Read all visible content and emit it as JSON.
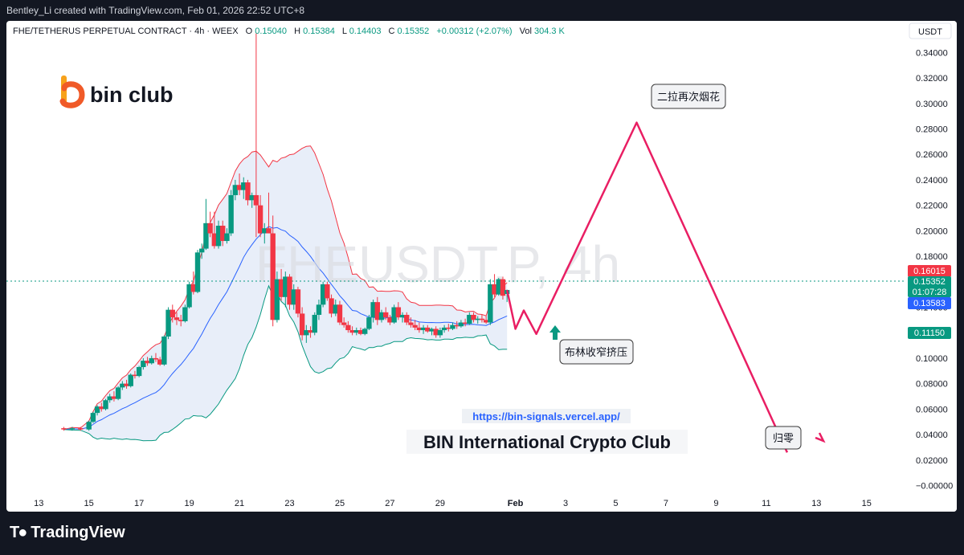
{
  "header": {
    "credit": "Bentley_Li created with TradingView.com, Feb 01, 2026 22:52 UTC+8"
  },
  "legend": {
    "symbol": "FHE/TETHERUS PERPETUAL CONTRACT · 4h · WEEX",
    "o_label": "O",
    "o_value": "0.15040",
    "h_label": "H",
    "h_value": "0.15384",
    "l_label": "L",
    "l_value": "0.14403",
    "c_label": "C",
    "c_value": "0.15352",
    "change": "+0.00312 (+2.07%)",
    "vol_label": "Vol",
    "vol_value": "304.3 K"
  },
  "watermark": "FHEUSDT.P, 4h",
  "brand": {
    "name": "bin club"
  },
  "footer": {
    "url": "https://bin-signals.vercel.app/",
    "club": "BIN International Crypto Club",
    "tradingview": "TradingView"
  },
  "callouts": {
    "second_pump": "二拉再次烟花",
    "bollinger_squeeze": "布林收窄挤压",
    "to_zero": "归零"
  },
  "price_badges": {
    "upper_band": "0.16015",
    "last_price": "0.15352",
    "countdown": "01:07:28",
    "mid_band": "0.13583",
    "lower_band": "0.11150"
  },
  "colors": {
    "up": "#089981",
    "down": "#f23645",
    "upper_band": "#f23645",
    "mid_band": "#2962ff",
    "lower_band": "#089981",
    "band_fill": "#e8eef9",
    "projection": "#e91e63"
  },
  "chart_data": {
    "type": "candlestick",
    "currency": "USDT",
    "y_ticks": [
      "0.34000",
      "0.32000",
      "0.30000",
      "0.28000",
      "0.26000",
      "0.24000",
      "0.22000",
      "0.20000",
      "0.18000",
      "0.16000",
      "0.14000",
      "0.12000",
      "0.10000",
      "0.08000",
      "0.06000",
      "0.04000",
      "0.02000",
      "−0.00000"
    ],
    "y_range": [
      -0.006,
      0.356
    ],
    "x_ticks": [
      "13",
      "15",
      "17",
      "19",
      "21",
      "23",
      "25",
      "27",
      "29",
      "Feb",
      "3",
      "5",
      "7",
      "9",
      "11",
      "13",
      "15"
    ],
    "time_range": [
      "Jan 12, 2026",
      "Feb 16, 2026"
    ],
    "candles": [
      {
        "t": "2026-01-14 00:00",
        "o": 0.045,
        "h": 0.046,
        "l": 0.043,
        "c": 0.044
      },
      {
        "t": "2026-01-14 08:00",
        "o": 0.044,
        "h": 0.046,
        "l": 0.043,
        "c": 0.045
      },
      {
        "t": "2026-01-14 16:00",
        "o": 0.045,
        "h": 0.046,
        "l": 0.043,
        "c": 0.044
      },
      {
        "t": "2026-01-15 00:00",
        "o": 0.044,
        "h": 0.051,
        "l": 0.043,
        "c": 0.05
      },
      {
        "t": "2026-01-15 04:00",
        "o": 0.05,
        "h": 0.058,
        "l": 0.049,
        "c": 0.057
      },
      {
        "t": "2026-01-15 08:00",
        "o": 0.057,
        "h": 0.063,
        "l": 0.055,
        "c": 0.062
      },
      {
        "t": "2026-01-15 12:00",
        "o": 0.062,
        "h": 0.065,
        "l": 0.058,
        "c": 0.06
      },
      {
        "t": "2026-01-15 16:00",
        "o": 0.06,
        "h": 0.068,
        "l": 0.059,
        "c": 0.067
      },
      {
        "t": "2026-01-15 20:00",
        "o": 0.067,
        "h": 0.072,
        "l": 0.065,
        "c": 0.07
      },
      {
        "t": "2026-01-16 00:00",
        "o": 0.07,
        "h": 0.074,
        "l": 0.066,
        "c": 0.068
      },
      {
        "t": "2026-01-16 04:00",
        "o": 0.068,
        "h": 0.078,
        "l": 0.067,
        "c": 0.077
      },
      {
        "t": "2026-01-16 08:00",
        "o": 0.077,
        "h": 0.082,
        "l": 0.075,
        "c": 0.08
      },
      {
        "t": "2026-01-16 12:00",
        "o": 0.08,
        "h": 0.083,
        "l": 0.076,
        "c": 0.078
      },
      {
        "t": "2026-01-16 16:00",
        "o": 0.078,
        "h": 0.088,
        "l": 0.077,
        "c": 0.087
      },
      {
        "t": "2026-01-16 20:00",
        "o": 0.087,
        "h": 0.09,
        "l": 0.084,
        "c": 0.086
      },
      {
        "t": "2026-01-17 00:00",
        "o": 0.086,
        "h": 0.094,
        "l": 0.085,
        "c": 0.093
      },
      {
        "t": "2026-01-17 04:00",
        "o": 0.093,
        "h": 0.1,
        "l": 0.091,
        "c": 0.098
      },
      {
        "t": "2026-01-17 08:00",
        "o": 0.098,
        "h": 0.101,
        "l": 0.094,
        "c": 0.096
      },
      {
        "t": "2026-01-17 12:00",
        "o": 0.096,
        "h": 0.102,
        "l": 0.095,
        "c": 0.1
      },
      {
        "t": "2026-01-17 16:00",
        "o": 0.1,
        "h": 0.104,
        "l": 0.097,
        "c": 0.099
      },
      {
        "t": "2026-01-17 20:00",
        "o": 0.099,
        "h": 0.101,
        "l": 0.094,
        "c": 0.095
      },
      {
        "t": "2026-01-18 00:00",
        "o": 0.095,
        "h": 0.118,
        "l": 0.094,
        "c": 0.117
      },
      {
        "t": "2026-01-18 04:00",
        "o": 0.117,
        "h": 0.14,
        "l": 0.115,
        "c": 0.138
      },
      {
        "t": "2026-01-18 08:00",
        "o": 0.138,
        "h": 0.142,
        "l": 0.128,
        "c": 0.132
      },
      {
        "t": "2026-01-18 12:00",
        "o": 0.132,
        "h": 0.136,
        "l": 0.126,
        "c": 0.13
      },
      {
        "t": "2026-01-18 16:00",
        "o": 0.13,
        "h": 0.134,
        "l": 0.125,
        "c": 0.129
      },
      {
        "t": "2026-01-18 20:00",
        "o": 0.129,
        "h": 0.142,
        "l": 0.128,
        "c": 0.14
      },
      {
        "t": "2026-01-19 00:00",
        "o": 0.14,
        "h": 0.16,
        "l": 0.139,
        "c": 0.158
      },
      {
        "t": "2026-01-19 04:00",
        "o": 0.158,
        "h": 0.168,
        "l": 0.15,
        "c": 0.152
      },
      {
        "t": "2026-01-19 08:00",
        "o": 0.152,
        "h": 0.185,
        "l": 0.151,
        "c": 0.183
      },
      {
        "t": "2026-01-19 12:00",
        "o": 0.183,
        "h": 0.19,
        "l": 0.178,
        "c": 0.186
      },
      {
        "t": "2026-01-19 16:00",
        "o": 0.186,
        "h": 0.225,
        "l": 0.185,
        "c": 0.206
      },
      {
        "t": "2026-01-19 20:00",
        "o": 0.206,
        "h": 0.215,
        "l": 0.195,
        "c": 0.198
      },
      {
        "t": "2026-01-20 00:00",
        "o": 0.198,
        "h": 0.215,
        "l": 0.186,
        "c": 0.188
      },
      {
        "t": "2026-01-20 04:00",
        "o": 0.188,
        "h": 0.208,
        "l": 0.186,
        "c": 0.204
      },
      {
        "t": "2026-01-20 08:00",
        "o": 0.204,
        "h": 0.208,
        "l": 0.188,
        "c": 0.192
      },
      {
        "t": "2026-01-20 12:00",
        "o": 0.192,
        "h": 0.202,
        "l": 0.19,
        "c": 0.198
      },
      {
        "t": "2026-01-20 16:00",
        "o": 0.198,
        "h": 0.232,
        "l": 0.196,
        "c": 0.228
      },
      {
        "t": "2026-01-20 20:00",
        "o": 0.228,
        "h": 0.24,
        "l": 0.224,
        "c": 0.236
      },
      {
        "t": "2026-01-21 00:00",
        "o": 0.236,
        "h": 0.245,
        "l": 0.228,
        "c": 0.232
      },
      {
        "t": "2026-01-21 04:00",
        "o": 0.232,
        "h": 0.242,
        "l": 0.225,
        "c": 0.238
      },
      {
        "t": "2026-01-21 08:00",
        "o": 0.238,
        "h": 0.24,
        "l": 0.22,
        "c": 0.224
      },
      {
        "t": "2026-01-21 12:00",
        "o": 0.224,
        "h": 0.23,
        "l": 0.218,
        "c": 0.228
      },
      {
        "t": "2026-01-21 16:00",
        "o": 0.228,
        "h": 0.355,
        "l": 0.195,
        "c": 0.22
      },
      {
        "t": "2026-01-21 20:00",
        "o": 0.22,
        "h": 0.228,
        "l": 0.195,
        "c": 0.198
      },
      {
        "t": "2026-01-22 00:00",
        "o": 0.198,
        "h": 0.206,
        "l": 0.19,
        "c": 0.202
      },
      {
        "t": "2026-01-22 04:00",
        "o": 0.202,
        "h": 0.23,
        "l": 0.198,
        "c": 0.198
      },
      {
        "t": "2026-01-22 08:00",
        "o": 0.198,
        "h": 0.212,
        "l": 0.125,
        "c": 0.13
      },
      {
        "t": "2026-01-22 12:00",
        "o": 0.13,
        "h": 0.168,
        "l": 0.128,
        "c": 0.162
      },
      {
        "t": "2026-01-22 16:00",
        "o": 0.162,
        "h": 0.17,
        "l": 0.145,
        "c": 0.148
      },
      {
        "t": "2026-01-22 20:00",
        "o": 0.148,
        "h": 0.168,
        "l": 0.14,
        "c": 0.164
      },
      {
        "t": "2026-01-23 00:00",
        "o": 0.164,
        "h": 0.166,
        "l": 0.138,
        "c": 0.142
      },
      {
        "t": "2026-01-23 04:00",
        "o": 0.142,
        "h": 0.158,
        "l": 0.138,
        "c": 0.154
      },
      {
        "t": "2026-01-23 08:00",
        "o": 0.154,
        "h": 0.156,
        "l": 0.132,
        "c": 0.135
      },
      {
        "t": "2026-01-23 12:00",
        "o": 0.135,
        "h": 0.14,
        "l": 0.114,
        "c": 0.118
      },
      {
        "t": "2026-01-23 16:00",
        "o": 0.118,
        "h": 0.126,
        "l": 0.112,
        "c": 0.122
      },
      {
        "t": "2026-01-23 20:00",
        "o": 0.122,
        "h": 0.125,
        "l": 0.116,
        "c": 0.12
      },
      {
        "t": "2026-01-24 00:00",
        "o": 0.12,
        "h": 0.136,
        "l": 0.118,
        "c": 0.134
      },
      {
        "t": "2026-01-24 04:00",
        "o": 0.134,
        "h": 0.146,
        "l": 0.13,
        "c": 0.142
      },
      {
        "t": "2026-01-24 08:00",
        "o": 0.142,
        "h": 0.16,
        "l": 0.14,
        "c": 0.158
      },
      {
        "t": "2026-01-24 12:00",
        "o": 0.158,
        "h": 0.16,
        "l": 0.145,
        "c": 0.147
      },
      {
        "t": "2026-01-24 16:00",
        "o": 0.147,
        "h": 0.15,
        "l": 0.132,
        "c": 0.135
      },
      {
        "t": "2026-01-24 20:00",
        "o": 0.135,
        "h": 0.146,
        "l": 0.133,
        "c": 0.142
      },
      {
        "t": "2026-01-25 00:00",
        "o": 0.142,
        "h": 0.145,
        "l": 0.126,
        "c": 0.128
      },
      {
        "t": "2026-01-25 04:00",
        "o": 0.128,
        "h": 0.132,
        "l": 0.124,
        "c": 0.126
      },
      {
        "t": "2026-01-25 08:00",
        "o": 0.126,
        "h": 0.129,
        "l": 0.12,
        "c": 0.122
      },
      {
        "t": "2026-01-25 12:00",
        "o": 0.122,
        "h": 0.125,
        "l": 0.118,
        "c": 0.12
      },
      {
        "t": "2026-01-25 16:00",
        "o": 0.12,
        "h": 0.124,
        "l": 0.118,
        "c": 0.122
      },
      {
        "t": "2026-01-25 20:00",
        "o": 0.122,
        "h": 0.124,
        "l": 0.118,
        "c": 0.119
      },
      {
        "t": "2026-01-26 00:00",
        "o": 0.119,
        "h": 0.124,
        "l": 0.118,
        "c": 0.123
      },
      {
        "t": "2026-01-26 04:00",
        "o": 0.123,
        "h": 0.134,
        "l": 0.122,
        "c": 0.132
      },
      {
        "t": "2026-01-26 08:00",
        "o": 0.132,
        "h": 0.146,
        "l": 0.128,
        "c": 0.144
      },
      {
        "t": "2026-01-26 12:00",
        "o": 0.144,
        "h": 0.148,
        "l": 0.126,
        "c": 0.13
      },
      {
        "t": "2026-01-26 16:00",
        "o": 0.13,
        "h": 0.138,
        "l": 0.128,
        "c": 0.136
      },
      {
        "t": "2026-01-26 20:00",
        "o": 0.136,
        "h": 0.14,
        "l": 0.13,
        "c": 0.132
      },
      {
        "t": "2026-01-27 00:00",
        "o": 0.132,
        "h": 0.134,
        "l": 0.126,
        "c": 0.128
      },
      {
        "t": "2026-01-27 04:00",
        "o": 0.128,
        "h": 0.142,
        "l": 0.127,
        "c": 0.14
      },
      {
        "t": "2026-01-27 08:00",
        "o": 0.14,
        "h": 0.144,
        "l": 0.13,
        "c": 0.132
      },
      {
        "t": "2026-01-27 12:00",
        "o": 0.132,
        "h": 0.136,
        "l": 0.128,
        "c": 0.134
      },
      {
        "t": "2026-01-27 16:00",
        "o": 0.134,
        "h": 0.136,
        "l": 0.126,
        "c": 0.128
      },
      {
        "t": "2026-01-27 20:00",
        "o": 0.128,
        "h": 0.132,
        "l": 0.124,
        "c": 0.126
      },
      {
        "t": "2026-01-28 00:00",
        "o": 0.126,
        "h": 0.13,
        "l": 0.122,
        "c": 0.124
      },
      {
        "t": "2026-01-28 04:00",
        "o": 0.124,
        "h": 0.128,
        "l": 0.12,
        "c": 0.122
      },
      {
        "t": "2026-01-28 08:00",
        "o": 0.122,
        "h": 0.126,
        "l": 0.119,
        "c": 0.124
      },
      {
        "t": "2026-01-28 12:00",
        "o": 0.124,
        "h": 0.126,
        "l": 0.12,
        "c": 0.121
      },
      {
        "t": "2026-01-28 16:00",
        "o": 0.121,
        "h": 0.124,
        "l": 0.118,
        "c": 0.123
      },
      {
        "t": "2026-01-28 20:00",
        "o": 0.123,
        "h": 0.125,
        "l": 0.116,
        "c": 0.118
      },
      {
        "t": "2026-01-29 00:00",
        "o": 0.118,
        "h": 0.124,
        "l": 0.116,
        "c": 0.122
      },
      {
        "t": "2026-01-29 04:00",
        "o": 0.122,
        "h": 0.126,
        "l": 0.12,
        "c": 0.124
      },
      {
        "t": "2026-01-29 08:00",
        "o": 0.124,
        "h": 0.127,
        "l": 0.121,
        "c": 0.123
      },
      {
        "t": "2026-01-29 12:00",
        "o": 0.123,
        "h": 0.128,
        "l": 0.122,
        "c": 0.126
      },
      {
        "t": "2026-01-29 16:00",
        "o": 0.126,
        "h": 0.129,
        "l": 0.123,
        "c": 0.125
      },
      {
        "t": "2026-01-29 20:00",
        "o": 0.125,
        "h": 0.13,
        "l": 0.124,
        "c": 0.128
      },
      {
        "t": "2026-01-30 00:00",
        "o": 0.128,
        "h": 0.131,
        "l": 0.125,
        "c": 0.127
      },
      {
        "t": "2026-01-30 04:00",
        "o": 0.127,
        "h": 0.136,
        "l": 0.126,
        "c": 0.134
      },
      {
        "t": "2026-01-30 08:00",
        "o": 0.134,
        "h": 0.136,
        "l": 0.128,
        "c": 0.13
      },
      {
        "t": "2026-01-30 12:00",
        "o": 0.13,
        "h": 0.133,
        "l": 0.127,
        "c": 0.131
      },
      {
        "t": "2026-01-30 16:00",
        "o": 0.131,
        "h": 0.134,
        "l": 0.128,
        "c": 0.13
      },
      {
        "t": "2026-01-30 20:00",
        "o": 0.13,
        "h": 0.133,
        "l": 0.127,
        "c": 0.128
      },
      {
        "t": "2026-01-31 00:00",
        "o": 0.128,
        "h": 0.162,
        "l": 0.126,
        "c": 0.158
      },
      {
        "t": "2026-01-31 04:00",
        "o": 0.158,
        "h": 0.166,
        "l": 0.148,
        "c": 0.15
      },
      {
        "t": "2026-01-31 08:00",
        "o": 0.15,
        "h": 0.163,
        "l": 0.149,
        "c": 0.162
      },
      {
        "t": "2026-01-31 12:00",
        "o": 0.162,
        "h": 0.164,
        "l": 0.146,
        "c": 0.149
      },
      {
        "t": "2026-01-31 16:00",
        "o": 0.1504,
        "h": 0.15384,
        "l": 0.14403,
        "c": 0.15352
      }
    ],
    "projection": [
      {
        "t": "2026-01-31 16:00",
        "p": 0.1535
      },
      {
        "t": "2026-02-01 00:00",
        "p": 0.123
      },
      {
        "t": "2026-02-01 08:00",
        "p": 0.1375
      },
      {
        "t": "2026-02-01 20:00",
        "p": 0.119
      },
      {
        "t": "2026-02-05 20:00",
        "p": 0.285
      },
      {
        "t": "2026-02-11 20:00",
        "p": 0.026
      }
    ]
  }
}
